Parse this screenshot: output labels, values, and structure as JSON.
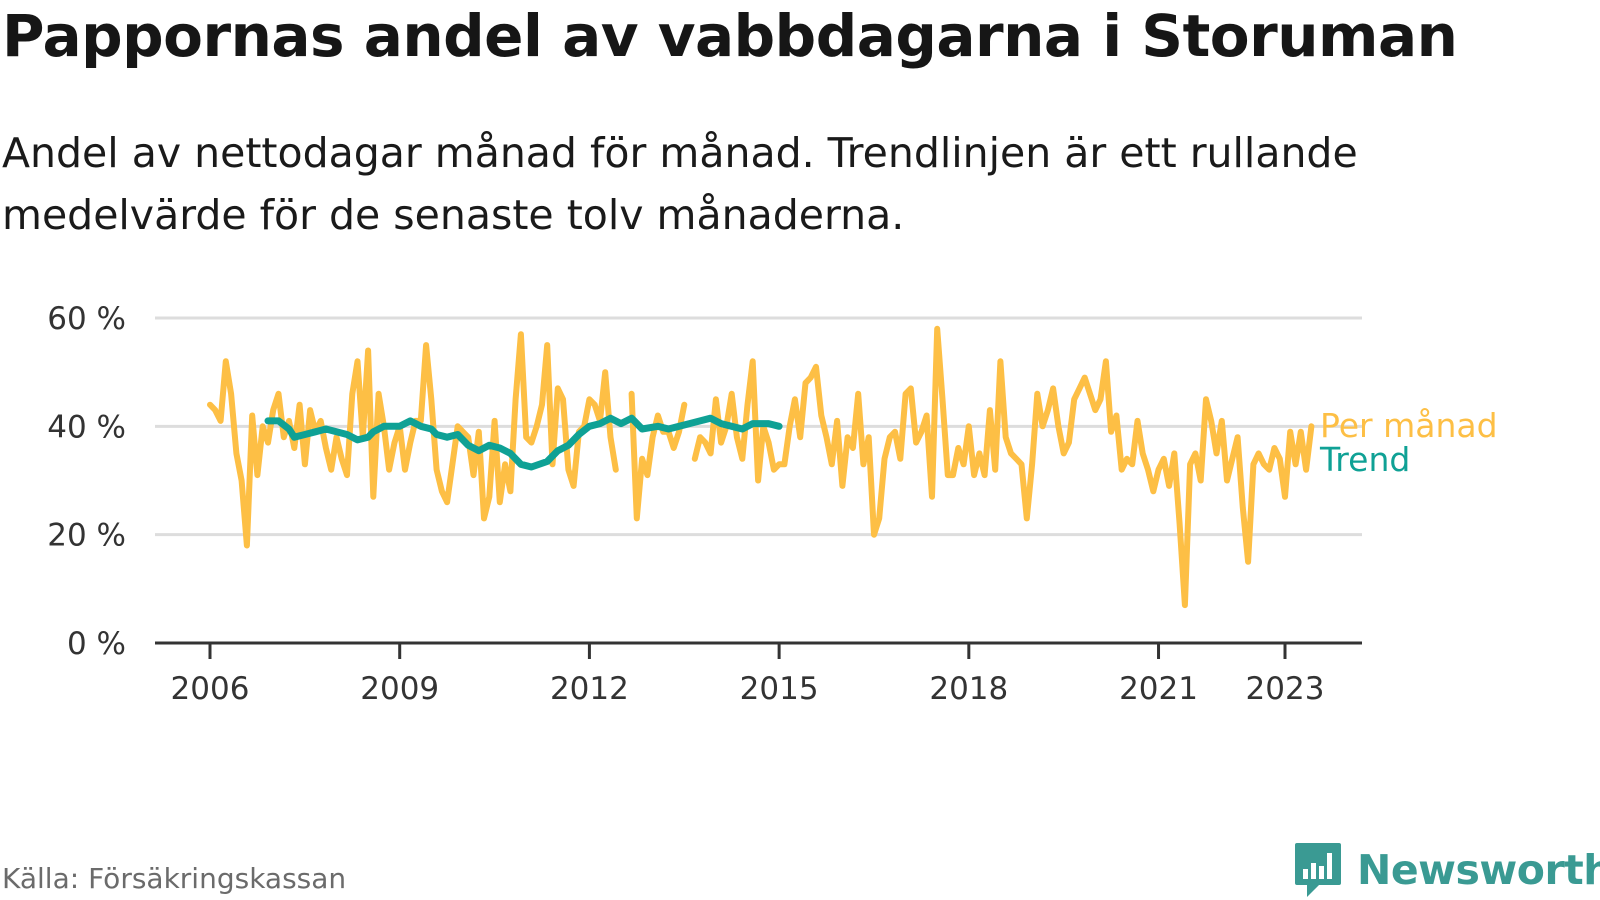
{
  "title": "Pappornas andel av vabbdagarna i Storuman",
  "subtitle": "Andel av nettodagar månad för månad. Trendlinjen är ett rullande medelvärde för de senaste tolv månaderna.",
  "source": "Källa: Försäkringskassan",
  "brand": "Newsworthy",
  "colors": {
    "monthly": "#fdbf45",
    "trend": "#0fa195",
    "grid": "#dddddd",
    "axis": "#333333",
    "brand": "#3a9a93"
  },
  "chart_data": {
    "type": "line",
    "title": "Pappornas andel av vabbdagarna i Storuman",
    "xlabel": "",
    "ylabel": "",
    "ylim": [
      0,
      60
    ],
    "yticks": [
      0,
      20,
      40,
      60
    ],
    "ytick_labels": [
      "0 %",
      "20 %",
      "40 %",
      "60 %"
    ],
    "xlim": [
      2005.1,
      2024.2
    ],
    "xticks": [
      2006,
      2009,
      2012,
      2015,
      2018,
      2021,
      2023
    ],
    "xtick_labels": [
      "2006",
      "2009",
      "2012",
      "2015",
      "2018",
      "2021",
      "2023"
    ],
    "grid": true,
    "legend": "direct labels at right end of lines",
    "series": [
      {
        "name": "Per månad",
        "color": "#fdbf45",
        "segments": [
          [
            [
              2006.0,
              44
            ],
            [
              2006.083,
              43
            ],
            [
              2006.167,
              41
            ],
            [
              2006.25,
              52
            ],
            [
              2006.333,
              46
            ],
            [
              2006.417,
              35
            ],
            [
              2006.5,
              30
            ],
            [
              2006.583,
              18
            ],
            [
              2006.667,
              42
            ],
            [
              2006.75,
              31
            ],
            [
              2006.833,
              40
            ],
            [
              2006.917,
              37
            ],
            [
              2007.0,
              43
            ],
            [
              2007.083,
              46
            ],
            [
              2007.167,
              38
            ],
            [
              2007.25,
              41
            ],
            [
              2007.333,
              36
            ],
            [
              2007.417,
              44
            ],
            [
              2007.5,
              33
            ],
            [
              2007.583,
              43
            ],
            [
              2007.667,
              39
            ],
            [
              2007.75,
              41
            ],
            [
              2007.833,
              36
            ],
            [
              2007.917,
              32
            ],
            [
              2008.0,
              38
            ],
            [
              2008.083,
              34
            ],
            [
              2008.167,
              31
            ],
            [
              2008.25,
              46
            ],
            [
              2008.333,
              52
            ],
            [
              2008.417,
              38
            ],
            [
              2008.5,
              54
            ],
            [
              2008.583,
              27
            ],
            [
              2008.667,
              46
            ],
            [
              2008.75,
              40
            ],
            [
              2008.833,
              32
            ],
            [
              2008.917,
              37
            ],
            [
              2009.0,
              40
            ],
            [
              2009.083,
              32
            ],
            [
              2009.167,
              37
            ],
            [
              2009.25,
              41
            ],
            [
              2009.333,
              41
            ],
            [
              2009.417,
              55
            ],
            [
              2009.5,
              45
            ],
            [
              2009.583,
              32
            ],
            [
              2009.667,
              28
            ],
            [
              2009.75,
              26
            ],
            [
              2009.833,
              33
            ],
            [
              2009.917,
              40
            ],
            [
              2010.0,
              39
            ],
            [
              2010.083,
              38
            ],
            [
              2010.167,
              31
            ],
            [
              2010.25,
              39
            ],
            [
              2010.333,
              23
            ],
            [
              2010.417,
              27
            ],
            [
              2010.5,
              41
            ],
            [
              2010.583,
              26
            ],
            [
              2010.667,
              33
            ],
            [
              2010.75,
              28
            ],
            [
              2010.833,
              45
            ],
            [
              2010.917,
              57
            ],
            [
              2011.0,
              38
            ],
            [
              2011.083,
              37
            ],
            [
              2011.167,
              40
            ],
            [
              2011.25,
              44
            ],
            [
              2011.333,
              55
            ],
            [
              2011.417,
              33
            ],
            [
              2011.5,
              47
            ],
            [
              2011.583,
              45
            ],
            [
              2011.667,
              32
            ],
            [
              2011.75,
              29
            ],
            [
              2011.833,
              39
            ],
            [
              2011.917,
              40
            ],
            [
              2012.0,
              45
            ],
            [
              2012.083,
              44
            ],
            [
              2012.167,
              41
            ],
            [
              2012.25,
              50
            ],
            [
              2012.333,
              38
            ],
            [
              2012.417,
              32
            ]
          ],
          [
            [
              2012.667,
              46
            ],
            [
              2012.75,
              23
            ],
            [
              2012.833,
              34
            ],
            [
              2012.917,
              31
            ],
            [
              2013.0,
              38
            ],
            [
              2013.083,
              42
            ],
            [
              2013.167,
              39
            ],
            [
              2013.25,
              39
            ],
            [
              2013.333,
              36
            ],
            [
              2013.417,
              39
            ],
            [
              2013.5,
              44
            ]
          ],
          [
            [
              2013.667,
              34
            ],
            [
              2013.75,
              38
            ],
            [
              2013.833,
              37
            ],
            [
              2013.917,
              35
            ],
            [
              2014.0,
              45
            ],
            [
              2014.083,
              37
            ],
            [
              2014.167,
              40
            ],
            [
              2014.25,
              46
            ],
            [
              2014.333,
              38
            ],
            [
              2014.417,
              34
            ],
            [
              2014.5,
              44
            ],
            [
              2014.583,
              52
            ],
            [
              2014.667,
              30
            ],
            [
              2014.75,
              40
            ],
            [
              2014.833,
              37
            ],
            [
              2014.917,
              32
            ],
            [
              2015.0,
              33
            ],
            [
              2015.083,
              33
            ],
            [
              2015.167,
              40
            ],
            [
              2015.25,
              45
            ],
            [
              2015.333,
              38
            ],
            [
              2015.417,
              48
            ],
            [
              2015.5,
              49
            ],
            [
              2015.583,
              51
            ],
            [
              2015.667,
              42
            ],
            [
              2015.75,
              38
            ],
            [
              2015.833,
              33
            ],
            [
              2015.917,
              41
            ],
            [
              2016.0,
              29
            ],
            [
              2016.083,
              38
            ],
            [
              2016.167,
              36
            ],
            [
              2016.25,
              46
            ],
            [
              2016.333,
              33
            ],
            [
              2016.417,
              38
            ],
            [
              2016.5,
              20
            ],
            [
              2016.583,
              23
            ],
            [
              2016.667,
              34
            ],
            [
              2016.75,
              38
            ],
            [
              2016.833,
              39
            ],
            [
              2016.917,
              34
            ],
            [
              2017.0,
              46
            ],
            [
              2017.083,
              47
            ],
            [
              2017.167,
              37
            ],
            [
              2017.25,
              39
            ],
            [
              2017.333,
              42
            ],
            [
              2017.417,
              27
            ],
            [
              2017.5,
              58
            ],
            [
              2017.583,
              45
            ],
            [
              2017.667,
              31
            ],
            [
              2017.75,
              31
            ],
            [
              2017.833,
              36
            ],
            [
              2017.917,
              33
            ],
            [
              2018.0,
              40
            ],
            [
              2018.083,
              31
            ],
            [
              2018.167,
              35
            ],
            [
              2018.25,
              31
            ],
            [
              2018.333,
              43
            ],
            [
              2018.417,
              32
            ],
            [
              2018.5,
              52
            ],
            [
              2018.583,
              38
            ],
            [
              2018.667,
              35
            ],
            [
              2018.75,
              34
            ],
            [
              2018.833,
              33
            ],
            [
              2018.917,
              23
            ],
            [
              2019.0,
              33
            ],
            [
              2019.083,
              46
            ],
            [
              2019.167,
              40
            ],
            [
              2019.25,
              43
            ],
            [
              2019.333,
              47
            ],
            [
              2019.417,
              40
            ],
            [
              2019.5,
              35
            ],
            [
              2019.583,
              37
            ],
            [
              2019.667,
              45
            ],
            [
              2019.75,
              47
            ],
            [
              2019.833,
              49
            ],
            [
              2019.917,
              46
            ],
            [
              2020.0,
              43
            ],
            [
              2020.083,
              45
            ],
            [
              2020.167,
              52
            ],
            [
              2020.25,
              39
            ],
            [
              2020.333,
              42
            ],
            [
              2020.417,
              32
            ],
            [
              2020.5,
              34
            ],
            [
              2020.583,
              33
            ],
            [
              2020.667,
              41
            ],
            [
              2020.75,
              35
            ],
            [
              2020.833,
              32
            ],
            [
              2020.917,
              28
            ],
            [
              2021.0,
              32
            ],
            [
              2021.083,
              34
            ],
            [
              2021.167,
              29
            ],
            [
              2021.25,
              35
            ],
            [
              2021.333,
              22
            ],
            [
              2021.417,
              7
            ],
            [
              2021.5,
              33
            ],
            [
              2021.583,
              35
            ],
            [
              2021.667,
              30
            ],
            [
              2021.75,
              45
            ],
            [
              2021.833,
              41
            ],
            [
              2021.917,
              35
            ],
            [
              2022.0,
              41
            ],
            [
              2022.083,
              30
            ],
            [
              2022.167,
              34
            ],
            [
              2022.25,
              38
            ],
            [
              2022.333,
              25
            ],
            [
              2022.417,
              15
            ],
            [
              2022.5,
              33
            ],
            [
              2022.583,
              35
            ],
            [
              2022.667,
              33
            ],
            [
              2022.75,
              32
            ],
            [
              2022.833,
              36
            ],
            [
              2022.917,
              34
            ],
            [
              2023.0,
              27
            ],
            [
              2023.083,
              39
            ],
            [
              2023.167,
              33
            ],
            [
              2023.25,
              39
            ],
            [
              2023.333,
              32
            ],
            [
              2023.417,
              40
            ]
          ]
        ]
      },
      {
        "name": "Trend",
        "color": "#0fa195",
        "segments": [
          [
            [
              2006.917,
              41
            ],
            [
              2007.083,
              41
            ],
            [
              2007.25,
              39.5
            ],
            [
              2007.333,
              38
            ],
            [
              2007.5,
              38.5
            ],
            [
              2007.667,
              39
            ],
            [
              2007.833,
              39.5
            ],
            [
              2008.0,
              39
            ],
            [
              2008.167,
              38.5
            ],
            [
              2008.333,
              37.5
            ],
            [
              2008.5,
              38
            ],
            [
              2008.583,
              39
            ],
            [
              2008.75,
              40
            ],
            [
              2009.0,
              40
            ],
            [
              2009.167,
              41
            ],
            [
              2009.333,
              40
            ],
            [
              2009.5,
              39.5
            ],
            [
              2009.583,
              38.5
            ],
            [
              2009.75,
              38
            ],
            [
              2009.917,
              38.5
            ],
            [
              2010.083,
              36.5
            ],
            [
              2010.25,
              35.5
            ],
            [
              2010.417,
              36.5
            ],
            [
              2010.583,
              36
            ],
            [
              2010.75,
              35
            ],
            [
              2010.917,
              33
            ],
            [
              2011.083,
              32.5
            ],
            [
              2011.333,
              33.5
            ],
            [
              2011.5,
              35.5
            ],
            [
              2011.667,
              36.5
            ],
            [
              2011.833,
              38.5
            ],
            [
              2012.0,
              40
            ],
            [
              2012.167,
              40.5
            ],
            [
              2012.333,
              41.5
            ],
            [
              2012.5,
              40.5
            ],
            [
              2012.667,
              41.5
            ],
            [
              2012.833,
              39.5
            ],
            [
              2013.083,
              40
            ],
            [
              2013.25,
              39.5
            ],
            [
              2013.417,
              40
            ],
            [
              2013.583,
              40.5
            ],
            [
              2013.75,
              41
            ],
            [
              2013.917,
              41.5
            ],
            [
              2014.083,
              40.5
            ],
            [
              2014.25,
              40
            ],
            [
              2014.417,
              39.5
            ],
            [
              2014.583,
              40.5
            ],
            [
              2014.833,
              40.5
            ],
            [
              2015.0,
              40
            ]
          ]
        ]
      }
    ]
  }
}
